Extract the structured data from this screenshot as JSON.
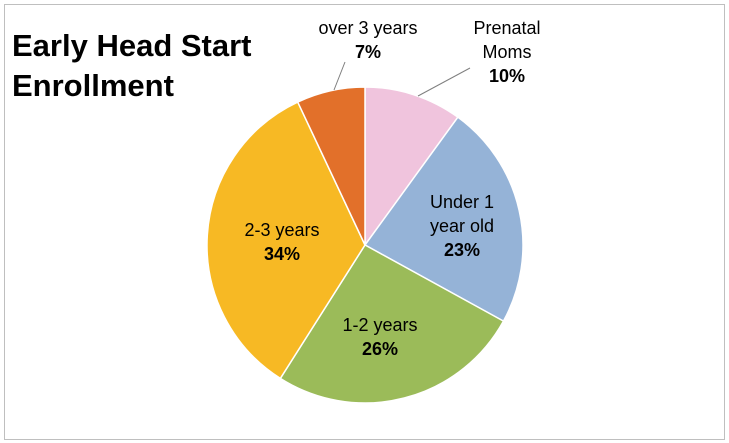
{
  "chart_data": {
    "type": "pie",
    "title": "Early Head Start Enrollment",
    "categories": [
      "Prenatal Moms",
      "Under 1 year old",
      "1-2 years",
      "2-3 years",
      "over 3 years"
    ],
    "values": [
      10,
      23,
      26,
      34,
      7
    ],
    "value_labels": [
      "10%",
      "23%",
      "26%",
      "34%",
      "7%"
    ],
    "colors": [
      "#f0c4dd",
      "#95b3d7",
      "#9bbb59",
      "#f7b924",
      "#e2702a"
    ]
  }
}
